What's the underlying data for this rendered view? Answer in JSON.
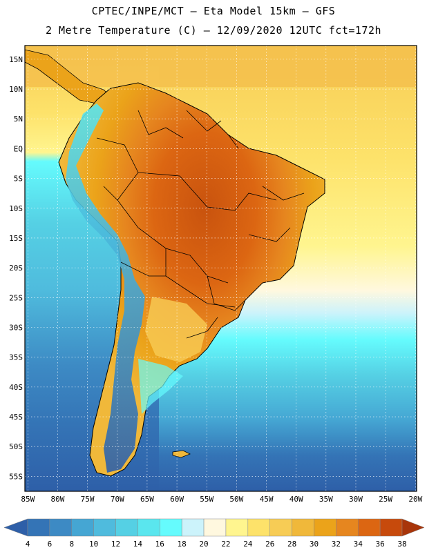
{
  "header": {
    "line1": "CPTEC/INPE/MCT –  Eta Model 15km – GFS",
    "line2": "2 Metre Temperature (C) – 12/09/2020 12UTC fct=172h"
  },
  "map": {
    "lat_labels": [
      "15N",
      "10N",
      "5N",
      "EQ",
      "5S",
      "10S",
      "15S",
      "20S",
      "25S",
      "30S",
      "35S",
      "40S",
      "45S",
      "50S",
      "55S"
    ],
    "lon_labels": [
      "85W",
      "80W",
      "75W",
      "70W",
      "65W",
      "60W",
      "55W",
      "50W",
      "45W",
      "40W",
      "35W",
      "30W",
      "25W",
      "20W"
    ],
    "ocean_color": "#5ec8df",
    "land_hot_color": "#e77c1c",
    "grid_color": "#ffffff"
  },
  "colorbar": {
    "labels": [
      "4",
      "6",
      "8",
      "10",
      "12",
      "14",
      "16",
      "18",
      "20",
      "22",
      "24",
      "26",
      "28",
      "30",
      "32",
      "34",
      "36",
      "38"
    ],
    "colors": [
      "#2e5fa8",
      "#3474b6",
      "#3d8ac4",
      "#45a6d3",
      "#4fbbdd",
      "#55d0e4",
      "#5ae6ee",
      "#65fbfd",
      "#ccf3fb",
      "#fff8df",
      "#fff58f",
      "#fde26a",
      "#f7cc55",
      "#f0b83a",
      "#eba31a",
      "#e6861f",
      "#dc6612",
      "#c74a0c",
      "#a8350a"
    ]
  }
}
